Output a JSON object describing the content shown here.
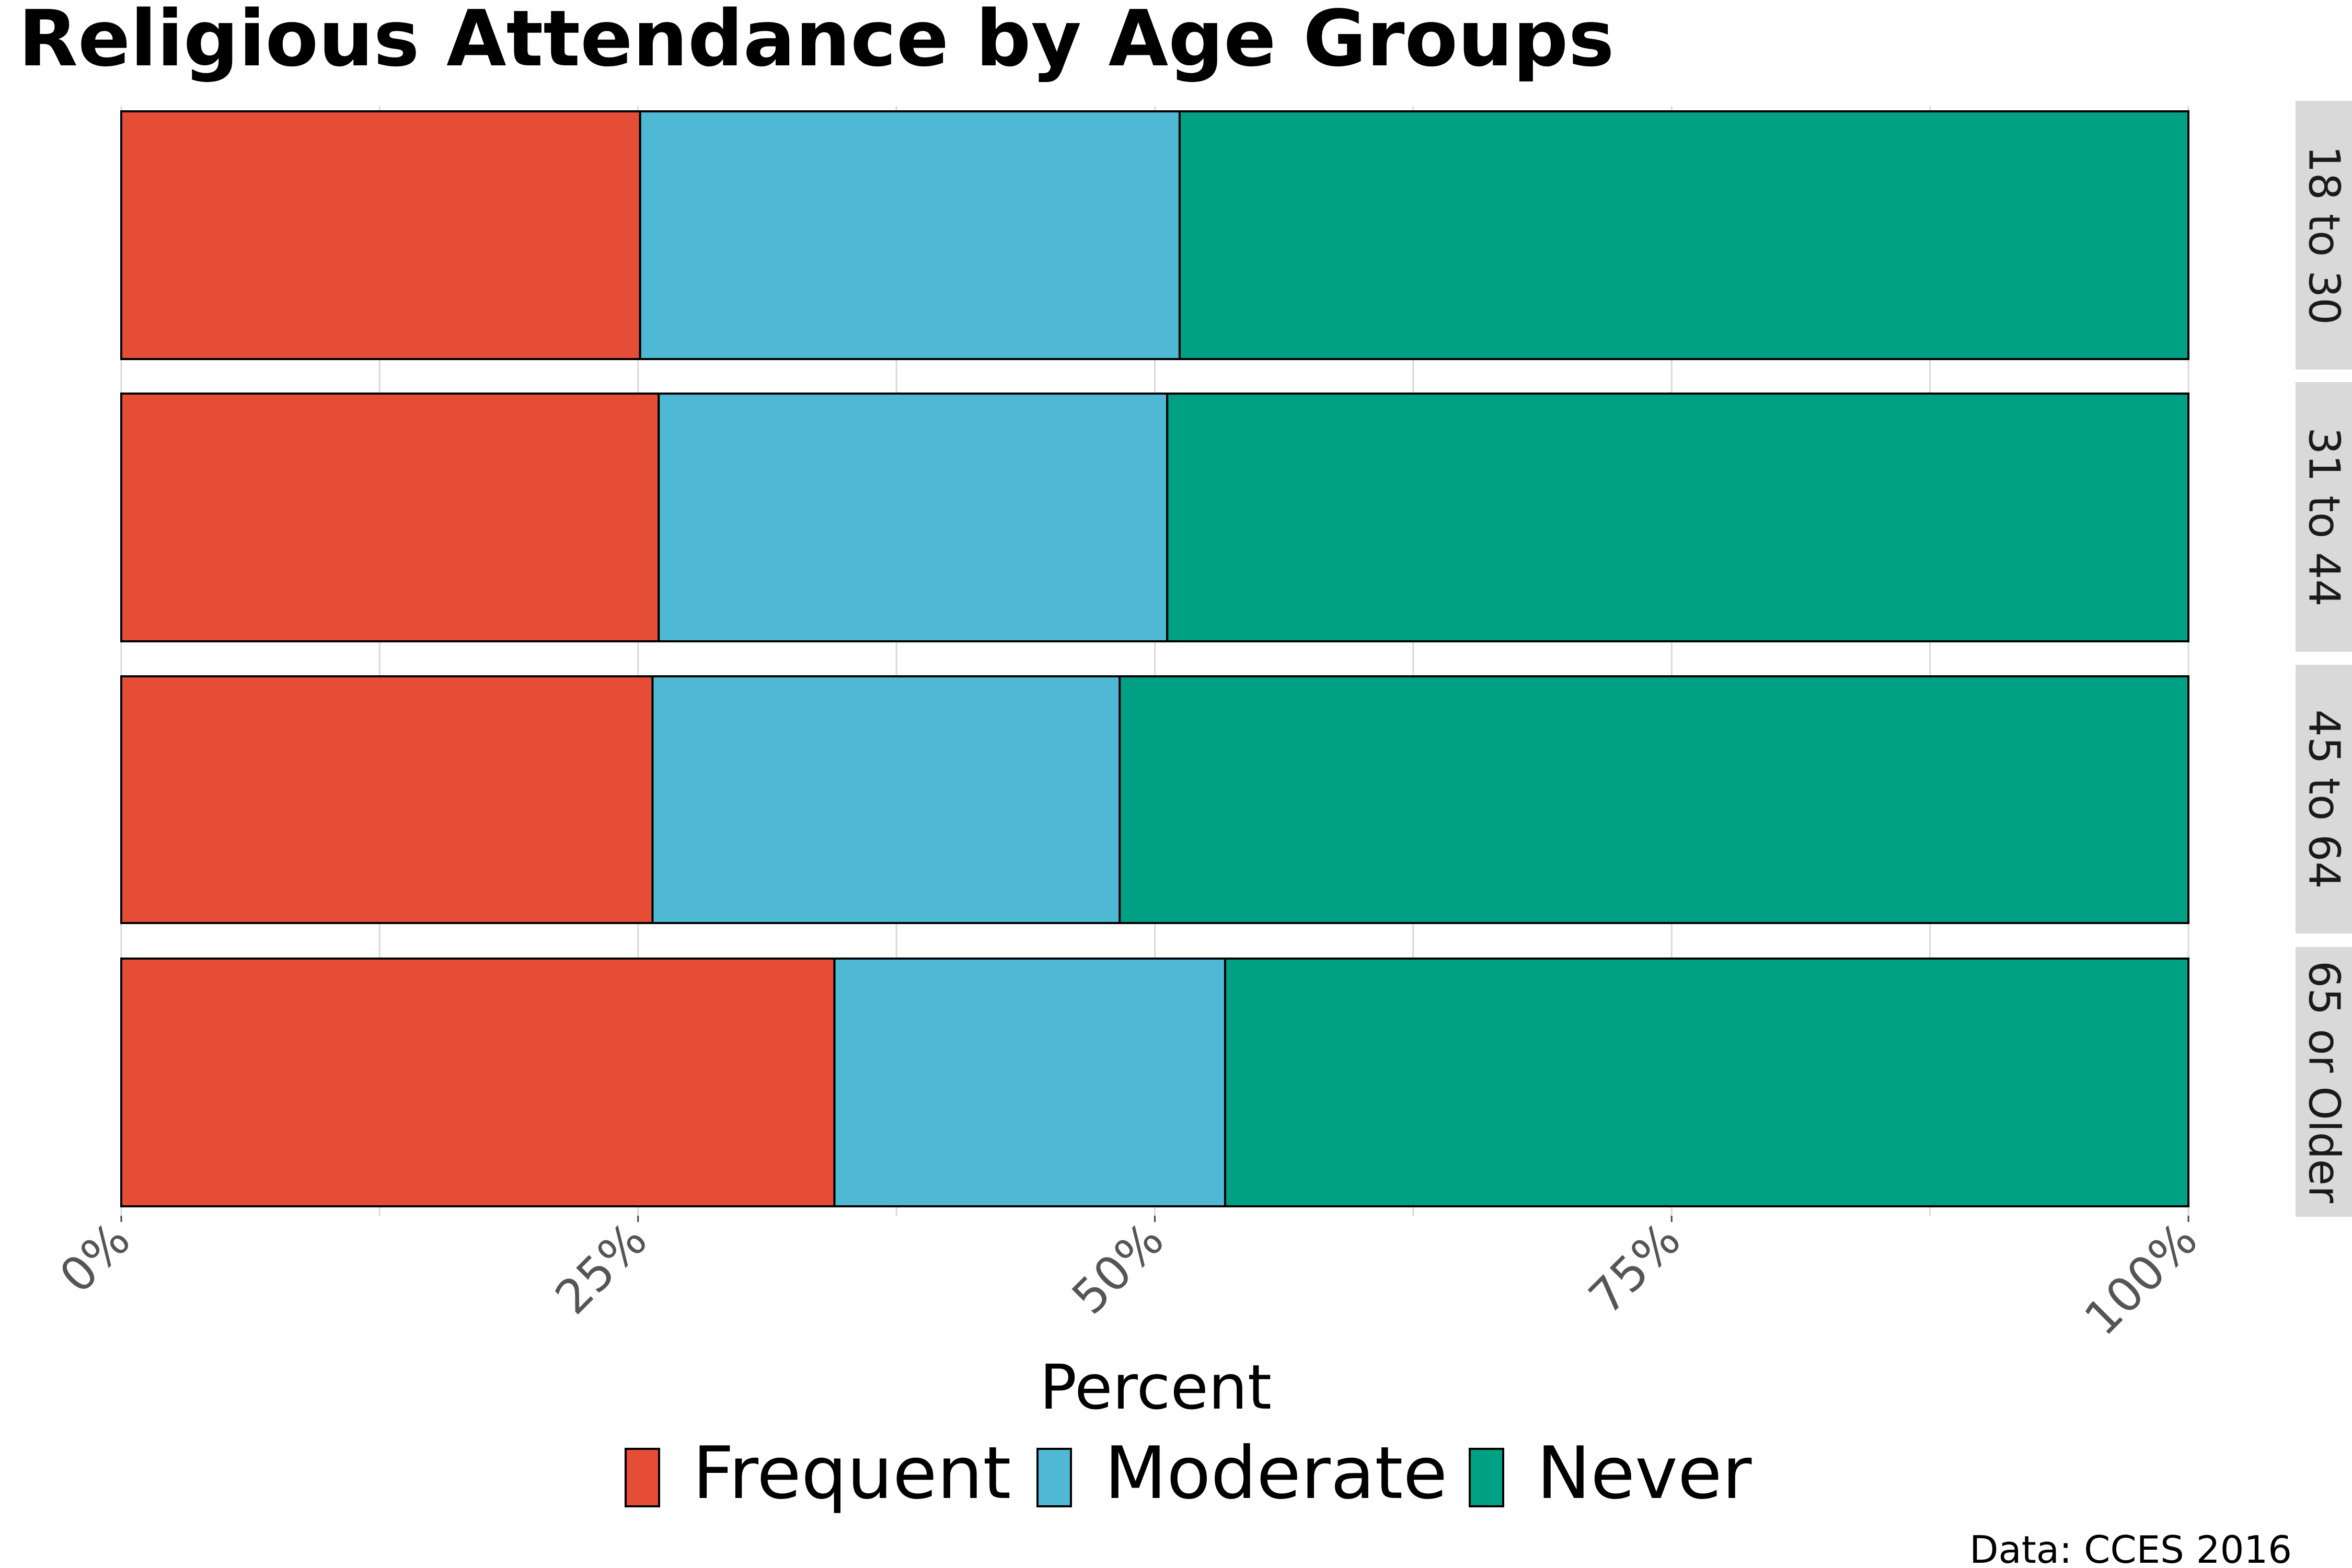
{
  "chart_data": {
    "type": "bar",
    "orientation": "horizontal",
    "stacked": "percent",
    "title": "Religious Attendance by Age Groups",
    "xlabel": "Percent",
    "caption": "Data: CCES 2016",
    "categories": [
      "18 to 30",
      "31 to 44",
      "45 to 64",
      "65 or Older"
    ],
    "x_ticks": [
      "0%",
      "25%",
      "50%",
      "75%",
      "100%"
    ],
    "xlim": [
      0,
      100
    ],
    "series": [
      {
        "name": "Frequent",
        "color": "#e54d37",
        "values": [
          25.1,
          26.0,
          25.7,
          34.5
        ]
      },
      {
        "name": "Moderate",
        "color": "#4fb9d5",
        "values": [
          26.1,
          24.6,
          22.6,
          18.9
        ]
      },
      {
        "name": "Never",
        "color": "#00a085",
        "values": [
          48.8,
          49.4,
          51.7,
          46.6
        ]
      }
    ],
    "grid": true,
    "legend_position": "bottom",
    "facet_strip_position": "right"
  }
}
